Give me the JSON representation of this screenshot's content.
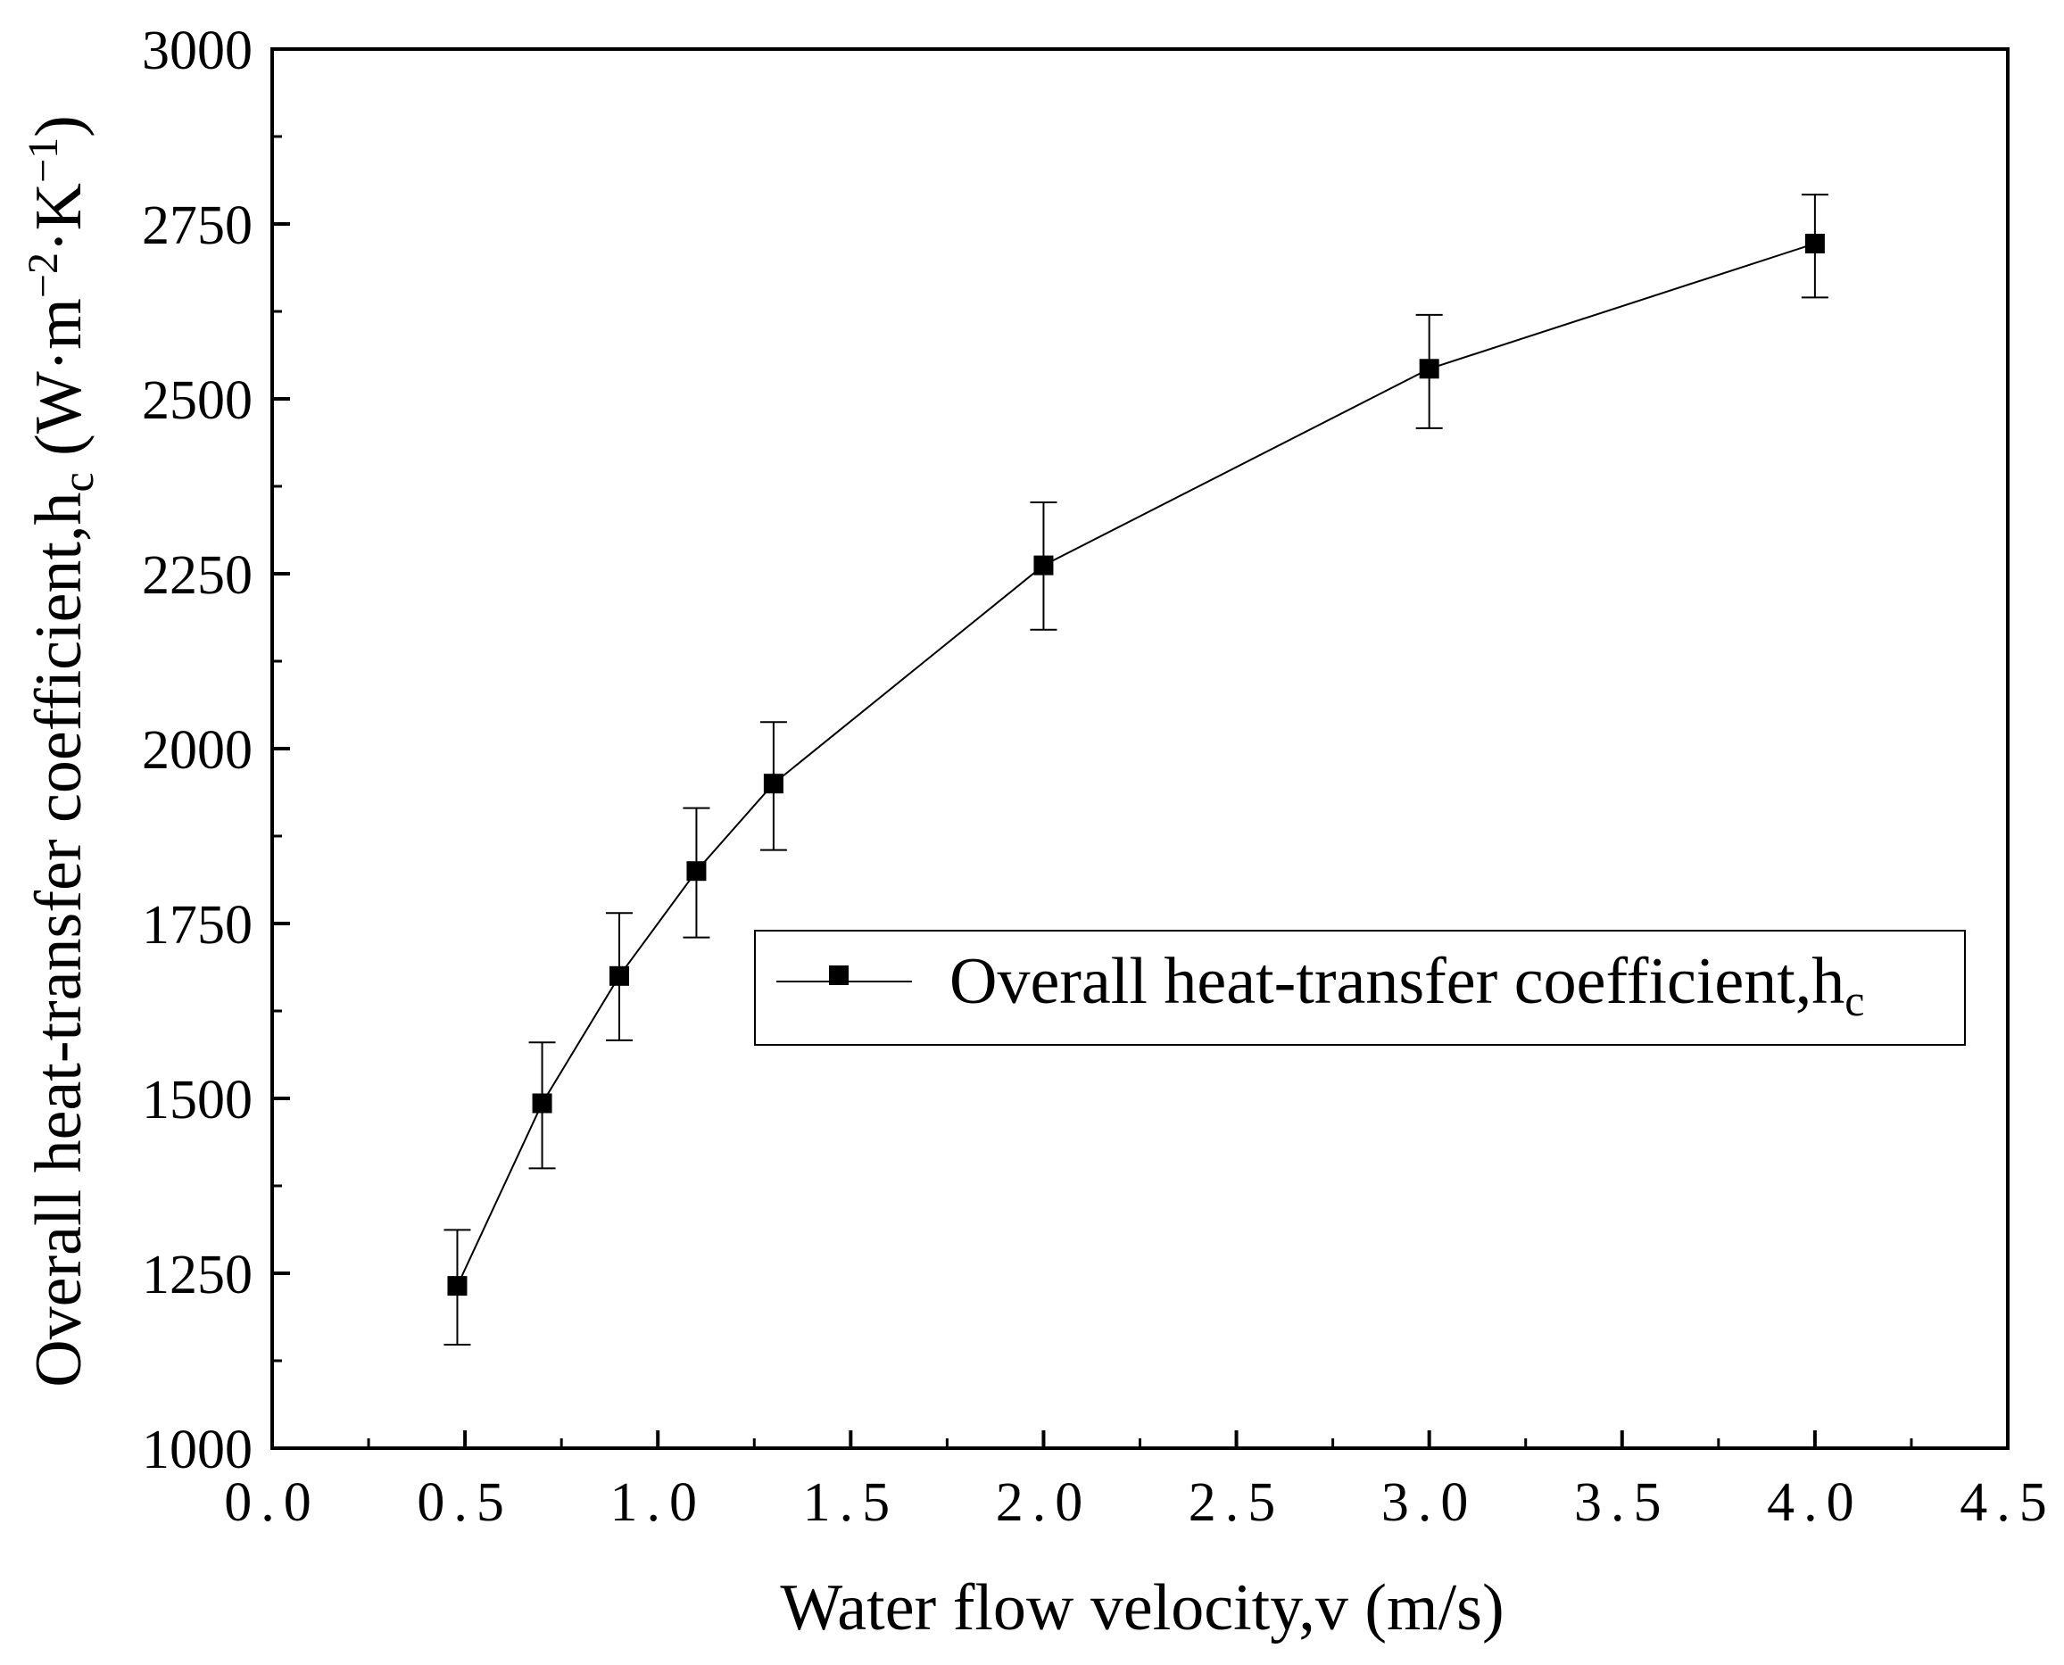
{
  "chart_data": {
    "type": "line",
    "title": "",
    "xlabel": "Water flow velocity,v (m/s)",
    "ylabel": {
      "prefix": "Overall heat-transfer coefficient,h",
      "sub": "c",
      "unit_open": " (W·m",
      "sup1": "−2",
      "mid": "·K",
      "sup2": "−1",
      "unit_close": ")"
    },
    "xlim": [
      0.0,
      4.5
    ],
    "ylim": [
      1000,
      3000
    ],
    "x_ticks": [
      0.0,
      0.5,
      1.0,
      1.5,
      2.0,
      2.5,
      3.0,
      3.5,
      4.0,
      4.5
    ],
    "x_tick_labels": [
      "0.0",
      "0.5",
      "1.0",
      "1.5",
      "2.0",
      "2.5",
      "3.0",
      "3.5",
      "4.0",
      "4.5"
    ],
    "y_ticks": [
      1000,
      1250,
      1500,
      1750,
      2000,
      2250,
      2500,
      2750,
      3000
    ],
    "y_tick_labels": [
      "1000",
      "1250",
      "1500",
      "1750",
      "2000",
      "2250",
      "2500",
      "2750",
      "3000"
    ],
    "grid": false,
    "series": [
      {
        "name_prefix": "Overall heat-transfer coefficient,h",
        "name_sub": "c",
        "marker": "square",
        "color": "#000000",
        "x": [
          0.48,
          0.7,
          0.9,
          1.1,
          1.3,
          2.0,
          3.0,
          4.0
        ],
        "y": [
          1232,
          1493,
          1675,
          1825,
          1950,
          2262,
          2543,
          2722
        ],
        "err_low": [
          1148,
          1400,
          1583,
          1730,
          1855,
          2170,
          2458,
          2645
        ],
        "err_high": [
          1312,
          1580,
          1765,
          1915,
          2038,
          2352,
          2620,
          2792
        ]
      }
    ],
    "legend_position": "center-right"
  }
}
